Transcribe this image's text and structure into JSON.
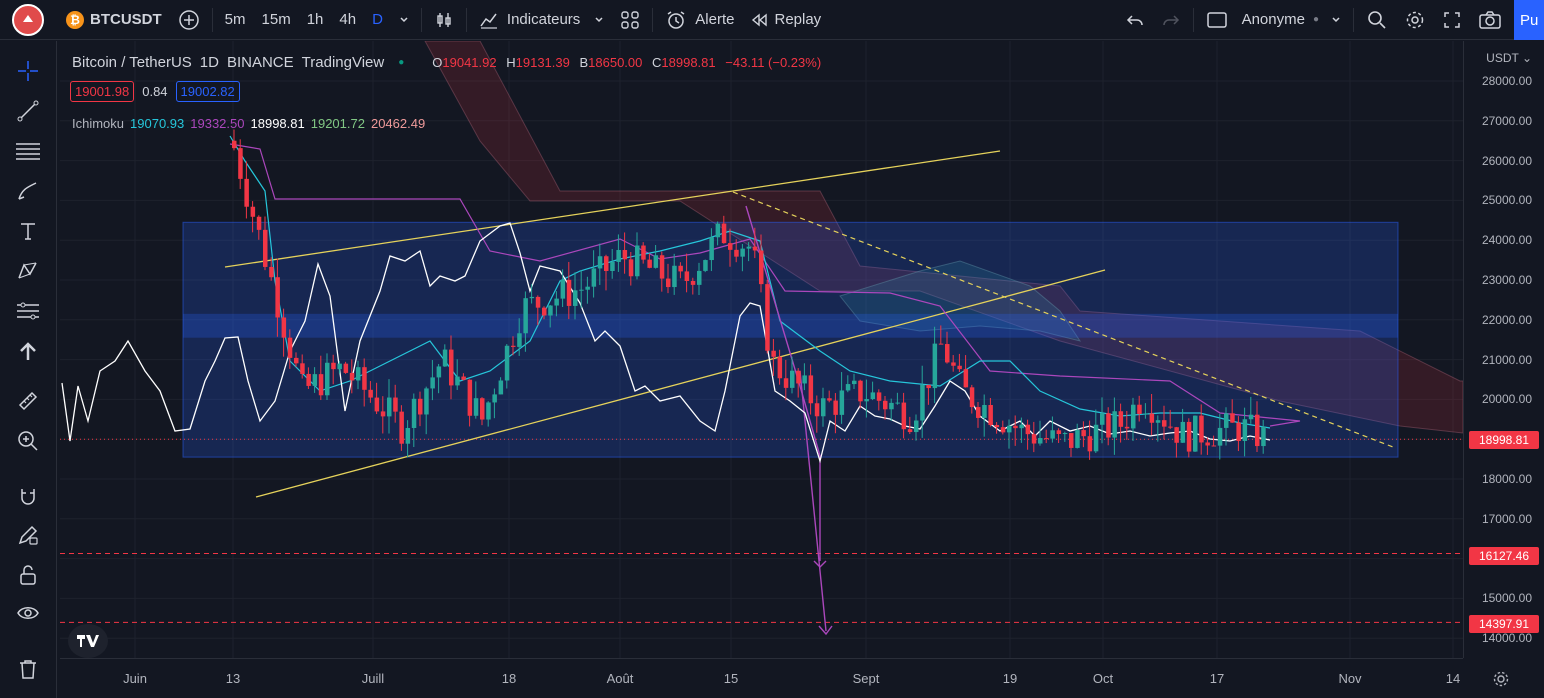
{
  "topbar": {
    "symbol": "BTCUSDT",
    "intervals": [
      "5m",
      "15m",
      "1h",
      "4h",
      "D"
    ],
    "active_interval": "D",
    "indicators_label": "Indicateurs",
    "alert_label": "Alerte",
    "replay_label": "Replay",
    "layout_name": "Anonyme",
    "publish_label": "Pu"
  },
  "legend": {
    "title": "Bitcoin / TetherUS",
    "timeframe": "1D",
    "exchange": "BINANCE",
    "source": "TradingView",
    "ohlc": {
      "o": "19041.92",
      "h": "19131.39",
      "b": "18650.00",
      "c": "18998.81",
      "change": "−43.11 (−0.23%)"
    }
  },
  "bidask": {
    "bid": "19001.98",
    "spread": "0.84",
    "ask": "19002.82"
  },
  "ichimoku": {
    "label": "Ichimoku",
    "values": [
      "19070.93",
      "19332.50",
      "18998.81",
      "19201.72",
      "20462.49"
    ],
    "colors": [
      "#26c6da",
      "#ab47bc",
      "#ffffff",
      "#81c784",
      "#ef9a9a"
    ]
  },
  "price_axis": {
    "currency": "USDT",
    "labels": [
      "28000.00",
      "27000.00",
      "26000.00",
      "25000.00",
      "24000.00",
      "23000.00",
      "22000.00",
      "21000.00",
      "20000.00",
      "19000.00",
      "18000.00",
      "17000.00",
      "16000.00",
      "15000.00",
      "14000.00"
    ],
    "current_price": "18998.81",
    "level_1": "16127.46",
    "level_2": "14397.91"
  },
  "time_axis": {
    "labels": [
      "Juin",
      "13",
      "Juill",
      "18",
      "Août",
      "15",
      "Sept",
      "19",
      "Oct",
      "17",
      "Nov",
      "14"
    ]
  },
  "chart_data": {
    "type": "line",
    "symbol": "BTCUSDT",
    "timeframe": "1D",
    "current_price": 18998.81,
    "ylim": [
      13800,
      28500
    ],
    "support_levels": [
      16127.46,
      14397.91
    ],
    "range_box": [
      18550,
      24450
    ],
    "close_series": {
      "x": [
        "2022-06-13",
        "2022-06-18",
        "2022-06-25",
        "2022-07-04",
        "2022-07-08",
        "2022-07-13",
        "2022-07-18",
        "2022-07-21",
        "2022-07-27",
        "2022-07-30",
        "2022-08-05",
        "2022-08-10",
        "2022-08-14",
        "2022-08-16",
        "2022-08-19",
        "2022-08-24",
        "2022-08-28",
        "2022-09-05",
        "2022-09-09",
        "2022-09-13",
        "2022-09-19",
        "2022-09-25",
        "2022-10-01",
        "2022-10-06",
        "2022-10-10",
        "2022-10-15",
        "2022-10-20"
      ],
      "values": [
        26500,
        20500,
        21200,
        19300,
        21600,
        19300,
        22400,
        23200,
        22900,
        23600,
        23200,
        24000,
        24300,
        23900,
        20900,
        21400,
        19800,
        19800,
        21400,
        20200,
        19500,
        18900,
        19300,
        20300,
        19100,
        19200,
        19000
      ]
    },
    "colors": {
      "up": "#26a69a",
      "down": "#f23645",
      "range_box": "#2962ff",
      "trendline": "#e5d25b"
    }
  }
}
